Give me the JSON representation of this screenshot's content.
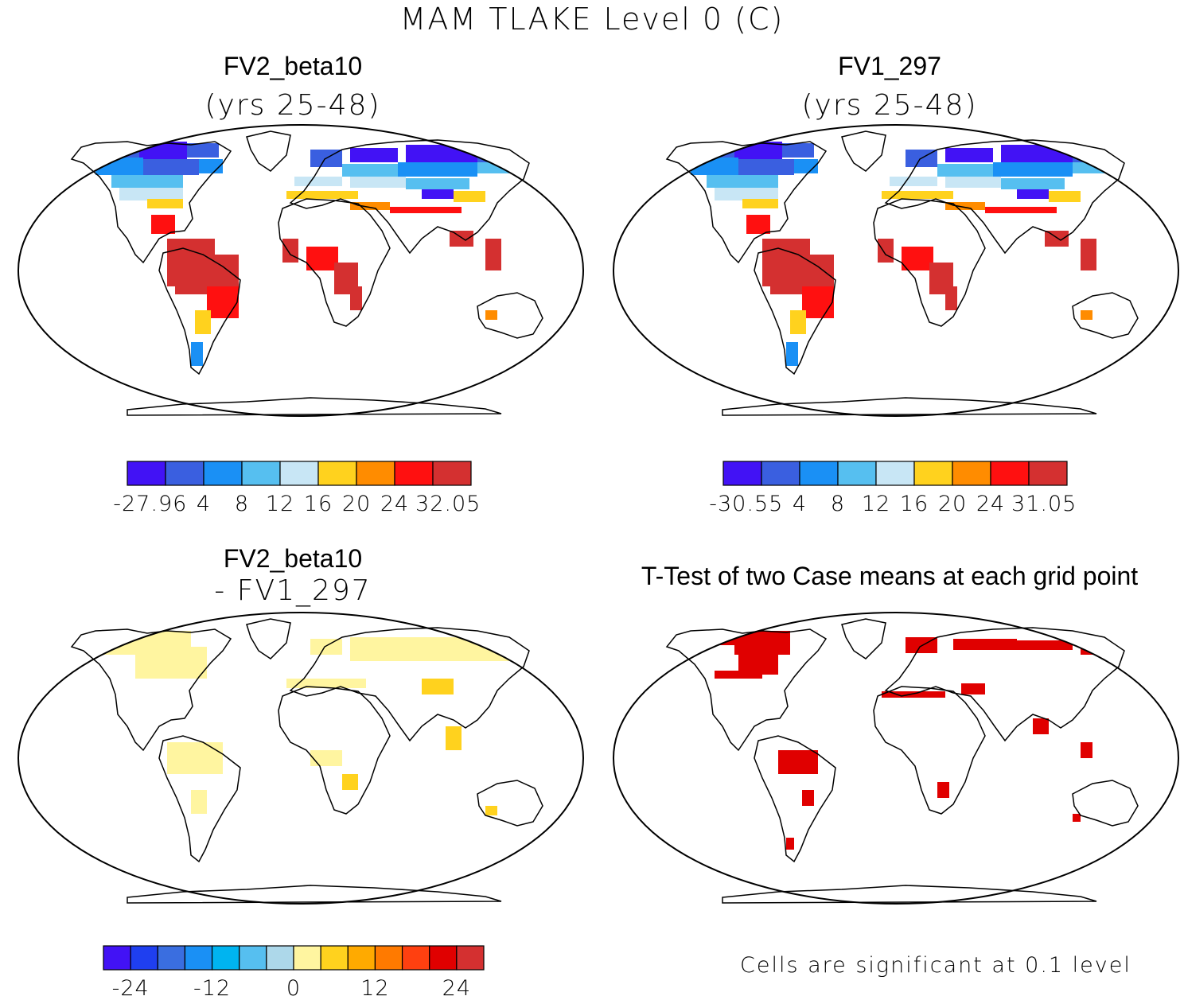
{
  "title": "MAM TLAKE Level 0 (C)",
  "panels": [
    {
      "id": "fv2",
      "title": "FV2_beta10",
      "subtitle": "(yrs 25-48)"
    },
    {
      "id": "fv1",
      "title": "FV1_297",
      "subtitle": "(yrs 25-48)"
    },
    {
      "id": "diff",
      "title": "FV2_beta10",
      "subtitle": "- FV1_297"
    },
    {
      "id": "ttest",
      "title": "T-Test of two Case means at each grid point",
      "subtitle": ""
    }
  ],
  "footnote": "Cells are significant at 0.1 level",
  "chart_data": [
    {
      "type": "map",
      "title": "FV2_beta10",
      "subtitle": "(yrs 25-48)",
      "colorbar": {
        "colors": [
          "#4212f5",
          "#3a5fe0",
          "#1a90f5",
          "#56bff0",
          "#c8e6f5",
          "#ffd21e",
          "#ff8c00",
          "#ff1010",
          "#d43030"
        ],
        "tick_labels": [
          "-27.96",
          "4",
          "8",
          "12",
          "16",
          "20",
          "24",
          "32.05"
        ]
      }
    },
    {
      "type": "map",
      "title": "FV1_297",
      "subtitle": "(yrs 25-48)",
      "colorbar": {
        "colors": [
          "#4212f5",
          "#3a5fe0",
          "#1a90f5",
          "#56bff0",
          "#c8e6f5",
          "#ffd21e",
          "#ff8c00",
          "#ff1010",
          "#d43030"
        ],
        "tick_labels": [
          "-30.55",
          "4",
          "8",
          "12",
          "16",
          "20",
          "24",
          "31.05"
        ]
      }
    },
    {
      "type": "map",
      "title": "FV2_beta10",
      "subtitle": "- FV1_297",
      "colorbar": {
        "colors": [
          "#4212f5",
          "#1f3ff0",
          "#3a6ee0",
          "#1a90f5",
          "#00b4f0",
          "#56bff0",
          "#add8ea",
          "#fff5a0",
          "#ffd21e",
          "#ffaa00",
          "#ff7a00",
          "#ff4010",
          "#e00000",
          "#d43030"
        ],
        "tick_labels": [
          "-24",
          "-12",
          "0",
          "12",
          "24"
        ]
      }
    },
    {
      "type": "map",
      "title": "T-Test of two Case means at each grid point",
      "colorbar": null
    }
  ]
}
